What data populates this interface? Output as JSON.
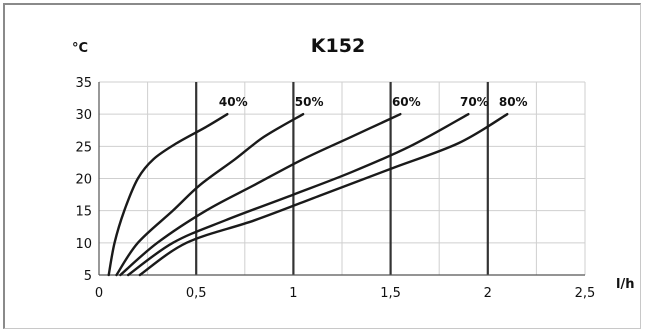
{
  "chart_data": {
    "type": "line",
    "title": "K152",
    "ylabel": "°C",
    "xlabel": "l/h",
    "xlim": [
      0,
      2.5
    ],
    "ylim": [
      5,
      35
    ],
    "x_ticks": [
      0,
      0.5,
      1,
      1.5,
      2,
      2.5
    ],
    "x_tick_labels": [
      "0",
      "0,5",
      "1",
      "1,5",
      "2",
      "2,5"
    ],
    "y_ticks": [
      5,
      10,
      15,
      20,
      25,
      30,
      35
    ],
    "y_tick_labels": [
      "5",
      "10",
      "15",
      "20",
      "25",
      "30",
      "35"
    ],
    "grid": true,
    "major_x_lines": [
      0.5,
      1,
      1.5,
      2
    ],
    "line_color": "#1a1a1a",
    "series": [
      {
        "name": "40%",
        "points": [
          [
            0.05,
            5
          ],
          [
            0.08,
            10
          ],
          [
            0.13,
            15
          ],
          [
            0.2,
            20
          ],
          [
            0.28,
            23
          ],
          [
            0.4,
            25.5
          ],
          [
            0.55,
            28
          ],
          [
            0.66,
            30
          ]
        ]
      },
      {
        "name": "50%",
        "points": [
          [
            0.09,
            5
          ],
          [
            0.2,
            10
          ],
          [
            0.38,
            15
          ],
          [
            0.52,
            19
          ],
          [
            0.7,
            23
          ],
          [
            0.85,
            26.5
          ],
          [
            1.05,
            30
          ]
        ]
      },
      {
        "name": "60%",
        "points": [
          [
            0.11,
            5
          ],
          [
            0.3,
            10
          ],
          [
            0.55,
            15
          ],
          [
            0.8,
            19
          ],
          [
            1.05,
            23
          ],
          [
            1.3,
            26.5
          ],
          [
            1.55,
            30
          ]
        ]
      },
      {
        "name": "70%",
        "points": [
          [
            0.15,
            5
          ],
          [
            0.38,
            10
          ],
          [
            0.65,
            13.5
          ],
          [
            1.0,
            17.5
          ],
          [
            1.3,
            21
          ],
          [
            1.6,
            25
          ],
          [
            1.9,
            30
          ]
        ]
      },
      {
        "name": "80%",
        "points": [
          [
            0.21,
            5
          ],
          [
            0.45,
            10
          ],
          [
            0.8,
            13.5
          ],
          [
            1.15,
            17.5
          ],
          [
            1.5,
            21.5
          ],
          [
            1.85,
            25.5
          ],
          [
            2.1,
            30
          ]
        ]
      }
    ]
  }
}
